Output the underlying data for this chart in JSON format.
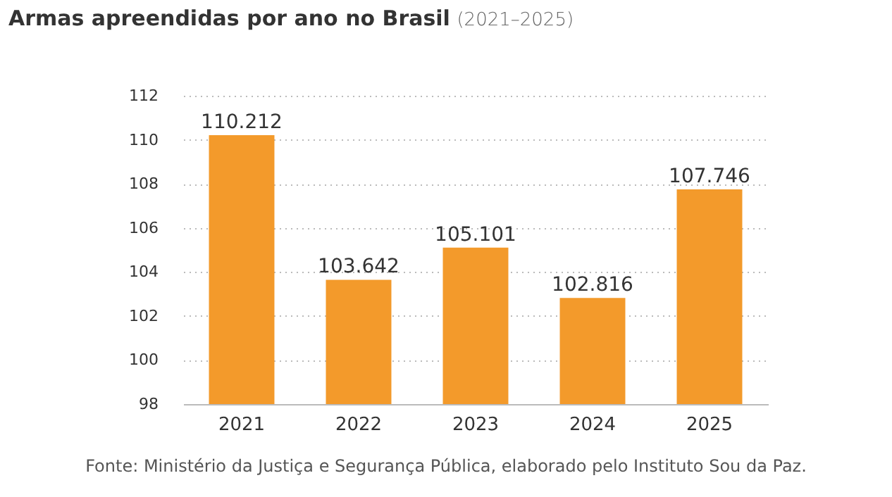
{
  "chart_data": {
    "type": "bar",
    "title": "Armas apreendidas por ano no Brasil",
    "subtitle": "(2021–2025)",
    "categories": [
      "2021",
      "2022",
      "2023",
      "2024",
      "2025"
    ],
    "values": [
      110.212,
      103.642,
      105.101,
      102.816,
      107.746
    ],
    "color": "#f39a2b",
    "ylim": [
      98,
      112
    ],
    "yticks": [
      98,
      100,
      102,
      104,
      106,
      108,
      110,
      112
    ],
    "grid": "y",
    "data_labels": true,
    "annotations": [
      "Fonte: Ministério da Justiça e Segurança Pública, elaborado pelo Instituto Sou da Paz."
    ]
  }
}
